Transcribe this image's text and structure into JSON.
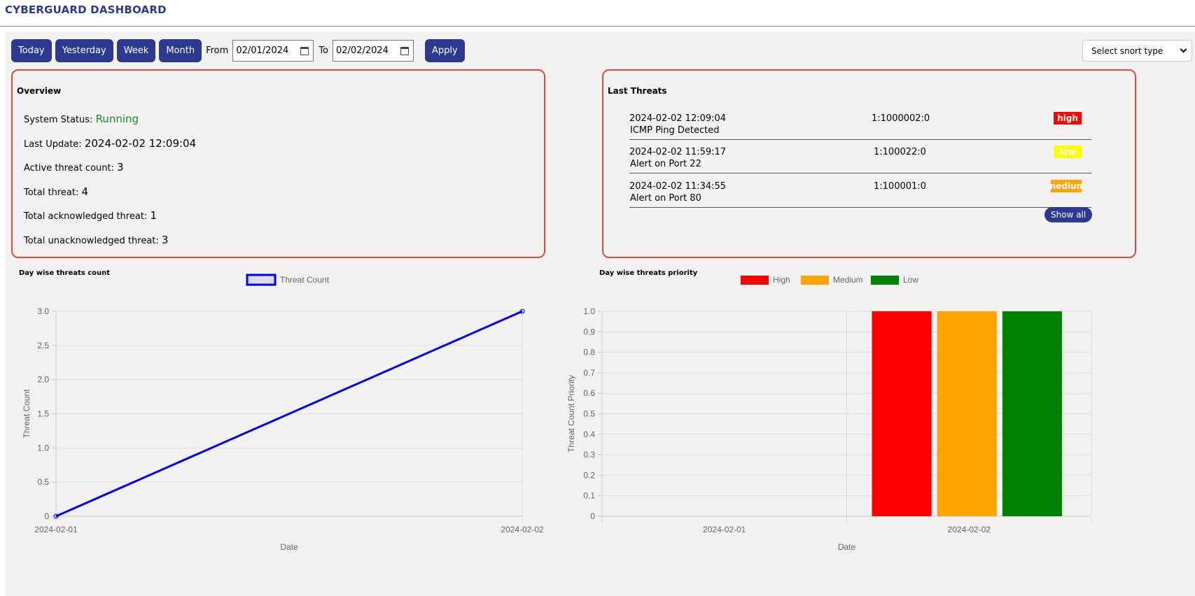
{
  "header": {
    "title": "CYBERGUARD DASHBOARD"
  },
  "toolbar": {
    "today_label": "Today",
    "yesterday_label": "Yesterday",
    "week_label": "Week",
    "month_label": "Month",
    "from_label": "From",
    "from_value": "02/01/2024",
    "to_label": "To",
    "to_value": "02/02/2024",
    "apply_label": "Apply",
    "snort_select_value": "Select snort type"
  },
  "overview": {
    "title": "Overview",
    "system_status_label": "System Status:",
    "system_status_value": "Running",
    "last_update_label": "Last Update:",
    "last_update_value": "2024-02-02 12:09:04",
    "active_threat_label": "Active threat count:",
    "active_threat_value": "3",
    "total_threat_label": "Total threat:",
    "total_threat_value": "4",
    "total_ack_label": "Total acknowledged threat:",
    "total_ack_value": "1",
    "total_unack_label": "Total unacknowledged threat:",
    "total_unack_value": "3"
  },
  "last_threats": {
    "title": "Last Threats",
    "items": [
      {
        "time": "2024-02-02 12:09:04",
        "sid": "1:1000002:0",
        "message": "ICMP Ping Detected",
        "priority": "high",
        "color": "#ff0000",
        "text_color": "#ffffff"
      },
      {
        "time": "2024-02-02 11:59:17",
        "sid": "1:100022:0",
        "message": "Alert on Port 22",
        "priority": "low",
        "color": "#ffff00",
        "text_color": "#ffffff"
      },
      {
        "time": "2024-02-02 11:34:55",
        "sid": "1:100001:0",
        "message": "Alert on Port 80",
        "priority": "medium",
        "color": "#ffa500",
        "text_color": "#ffffff"
      }
    ],
    "show_all_label": "Show all"
  },
  "charts_titles": {
    "left": "Day wise threats count",
    "right": "Day wise threats priority"
  },
  "chart_data": [
    {
      "type": "line",
      "title": "Day wise threats count",
      "x": [
        "2024-02-01",
        "2024-02-02"
      ],
      "series": [
        {
          "name": "Threat Count",
          "values": [
            0,
            3
          ],
          "color": "#0000e6"
        }
      ],
      "xlabel": "Date",
      "ylabel": "Threat Count",
      "ylim": [
        0,
        3.0
      ],
      "yticks": [
        "0",
        "0.5",
        "1.0",
        "1.5",
        "2.0",
        "2.5",
        "3.0"
      ],
      "legend": "top",
      "grid": true
    },
    {
      "type": "bar",
      "title": "Day wise threats priority",
      "categories": [
        "2024-02-01",
        "2024-02-02"
      ],
      "series": [
        {
          "name": "High",
          "values": [
            0,
            1
          ],
          "color": "#ff0000"
        },
        {
          "name": "Medium",
          "values": [
            0,
            1
          ],
          "color": "#ffa500"
        },
        {
          "name": "Low",
          "values": [
            0,
            1
          ],
          "color": "#008000"
        }
      ],
      "xlabel": "Date",
      "ylabel": "Threat Count Priority",
      "ylim": [
        0,
        1.0
      ],
      "yticks": [
        "0",
        "0.1",
        "0.2",
        "0.3",
        "0.4",
        "0.5",
        "0.6",
        "0.7",
        "0.8",
        "0.9",
        "1.0"
      ],
      "legend": "top",
      "grid": true
    }
  ]
}
